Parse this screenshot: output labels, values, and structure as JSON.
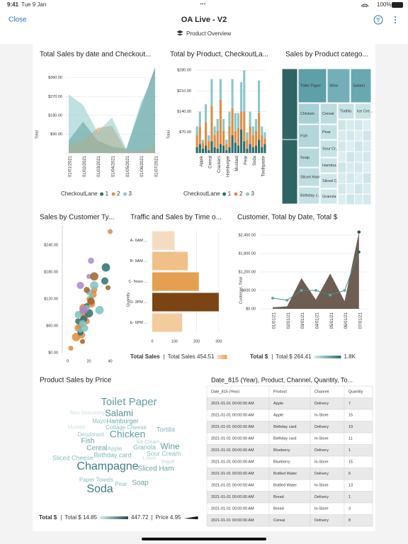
{
  "status_bar": {
    "time": "9:41",
    "date": "Tue 9 Jan",
    "battery": "100%"
  },
  "header": {
    "close": "Close",
    "title": "OA  Live - V2",
    "subtitle": "Product Overview"
  },
  "chart_data": [
    {
      "type": "area",
      "title": "Total Sales by date and  Checkout...",
      "y_label": "Total",
      "x": [
        "01/01/2021",
        "01/02/2021",
        "01/03/2021",
        "01/04/2021",
        "01/05/2021",
        "01/06/2021",
        "01/07/2021"
      ],
      "ylim": [
        0,
        410
      ],
      "yticks": [
        {
          "value": 90,
          "label": "$90.00"
        },
        {
          "value": 180,
          "label": "$180.00"
        },
        {
          "value": 270,
          "label": "$270.00"
        },
        {
          "value": 360,
          "label": "$360.00"
        }
      ],
      "legend_title": "CheckoutLane",
      "series": [
        {
          "name": "1",
          "color": "#2f6e6e",
          "values": [
            60,
            150,
            60,
            30,
            20,
            220,
            410
          ]
        },
        {
          "name": "2",
          "color": "#d9904a",
          "values": [
            40,
            60,
            120,
            130,
            10,
            10,
            40
          ]
        },
        {
          "name": "3",
          "color": "#8cc8c8",
          "values": [
            280,
            230,
            100,
            170,
            20,
            240,
            380
          ]
        }
      ]
    },
    {
      "type": "stacked_bar",
      "title": "Total by Product, CheckoutLa...",
      "y_label": "Total",
      "categories": [
        null,
        "Apple",
        null,
        null,
        "Cereal",
        null,
        null,
        "Crackers",
        null,
        null,
        "Hamburger",
        null,
        null,
        "Mustard",
        null,
        null,
        "Pear",
        null,
        null,
        "Soda",
        null,
        null,
        "Toothpaste",
        null
      ],
      "ylim": [
        0,
        290
      ],
      "yticks": [
        {
          "value": 70,
          "label": "$70.00"
        },
        {
          "value": 140,
          "label": "$140.00"
        },
        {
          "value": 210,
          "label": "$210.00"
        },
        {
          "value": 280,
          "label": "$280.00"
        }
      ],
      "legend_title": "CheckoutLane",
      "series": [
        {
          "name": "1",
          "color": "#2f6e6e",
          "values": [
            20,
            30,
            15,
            25,
            10,
            40,
            20,
            15,
            30,
            25,
            10,
            20,
            60,
            35,
            25,
            80,
            40,
            15,
            30,
            20,
            25,
            45,
            20,
            30
          ]
        },
        {
          "name": "2",
          "color": "#d9904a",
          "values": [
            40,
            60,
            20,
            80,
            30,
            120,
            40,
            60,
            150,
            50,
            20,
            70,
            90,
            40,
            60,
            60,
            100,
            30,
            60,
            40,
            50,
            90,
            40,
            20
          ]
        },
        {
          "name": "3",
          "color": "#8cc8c8",
          "values": [
            30,
            50,
            10,
            60,
            20,
            90,
            30,
            40,
            70,
            40,
            15,
            50,
            100,
            60,
            50,
            100,
            140,
            25,
            50,
            30,
            40,
            110,
            30,
            20
          ]
        }
      ]
    },
    {
      "type": "treemap",
      "title": "Sales by Product catego...",
      "categories": [
        "Toilet Paper",
        "Wine",
        "Salami",
        "Chicken",
        "Cereal",
        "Tortilla",
        "Ice Cre...",
        "Fish",
        "Pear",
        "Soap",
        "Sour Cr...",
        "Hambur...",
        "Sliced Ham",
        "Sliced C...",
        "Birthday c...",
        "Granola"
      ]
    },
    {
      "type": "scatter",
      "title": "Sales by Customer Ty...",
      "xlim": [
        -5,
        47
      ],
      "xticks": [
        0,
        20,
        40
      ],
      "ylim": [
        0,
        284
      ],
      "yticks": [
        {
          "value": 0,
          "label": "$0.00"
        },
        {
          "value": 60,
          "label": "$60.00"
        },
        {
          "value": 120,
          "label": "$120.00"
        },
        {
          "value": 180,
          "label": "$180.00"
        },
        {
          "value": 240,
          "label": "$240.00"
        }
      ],
      "series": [
        {
          "color": "#e08a3c",
          "x": [
            3,
            8,
            10,
            12,
            14,
            15,
            16,
            18,
            20,
            22,
            24,
            25,
            40,
            15,
            13
          ],
          "values": [
            10,
            35,
            55,
            60,
            75,
            90,
            80,
            70,
            120,
            110,
            130,
            140,
            270,
            100,
            40
          ]
        },
        {
          "color": "#2f6e6e",
          "x": [
            36,
            15,
            12,
            18,
            20,
            35,
            10
          ],
          "values": [
            190,
            75,
            45,
            105,
            88,
            160,
            70
          ]
        },
        {
          "color": "#7fc0c0",
          "x": [
            16,
            18,
            22,
            25,
            14,
            20,
            12,
            30,
            10
          ],
          "values": [
            55,
            100,
            125,
            150,
            65,
            135,
            50,
            95,
            85
          ]
        },
        {
          "color": "#a78ac8",
          "x": [
            22,
            20,
            15,
            12
          ],
          "values": [
            205,
            170,
            95,
            150
          ]
        },
        {
          "color": "#a0622a",
          "x": [
            38,
            25,
            22,
            18,
            14
          ],
          "values": [
            145,
            170,
            115,
            140,
            25
          ]
        }
      ]
    },
    {
      "type": "hbar",
      "title": "Traffic and Sales by Time o...",
      "x_label": "Quantity",
      "categories": [
        "A- 6AM ...",
        "B- 9AM ...",
        "C- Noon ...",
        "D- 3PM ...",
        "E- 6PM ..."
      ],
      "values": [
        100,
        160,
        210,
        300,
        135
      ],
      "colors": [
        "#f5dcc0",
        "#f0c088",
        "#e4a050",
        "#7a4414",
        "#f2cc9c"
      ],
      "xlim": [
        0,
        310
      ],
      "xticks": [
        0,
        100,
        200,
        300
      ],
      "grid": true,
      "legend": {
        "title": "Total Sales",
        "min_label": "Total Sales 454.51"
      }
    },
    {
      "type": "area_line",
      "title": "Customer, Total by Date, Total $",
      "y_label": "Customer, Total",
      "x": [
        "01/01/21",
        "02/01/21",
        "03/01/21",
        "04/01/21",
        "05/01/21",
        "06/01/21",
        "07/01/21"
      ],
      "ylim": [
        0,
        2630
      ],
      "yticks": [
        {
          "value": 0,
          "label": "$0.00"
        },
        {
          "value": 600,
          "label": "$600.00"
        },
        {
          "value": 1200,
          "label": "$1,200.00"
        },
        {
          "value": 1800,
          "label": "$1,800.00"
        },
        {
          "value": 2400,
          "label": "$2,400.00"
        }
      ],
      "series": [
        {
          "color": "#6e5d52",
          "values": [
            50,
            80,
            1000,
            300,
            1150,
            250,
            2500
          ]
        },
        {
          "color": "#3e8d8a",
          "values": [
            350,
            280,
            600,
            600,
            450,
            600,
            1850
          ]
        }
      ],
      "legend": {
        "title": "Total $",
        "min_label": "Total $ 264.41",
        "max_label": "1.8K"
      }
    },
    {
      "type": "wordcloud",
      "title": "Product Sales by Price",
      "words": [
        "Toilet Paper",
        "Salami",
        "Taco Seasoning",
        "Mayo",
        "Hamburger",
        "Cottage Cheese",
        "Deodorant",
        "Chicken",
        "Tortilla",
        "Fish",
        "Ice Cream",
        "Granola",
        "Cereal",
        "Apple",
        "Wine",
        "Birthday card",
        "Sour Cream",
        "Sliced Cheese",
        "Yogurt",
        "Champagne",
        "Sliced Ham",
        "Mustard",
        "Lotion",
        "Paper Towels",
        "Pear",
        "Soap",
        "Soda"
      ],
      "legend": {
        "title": "Total $",
        "min_label": "Total $ 14.85",
        "max_label": "447.72",
        "size_label": "Price 4.95"
      }
    }
  ],
  "table": {
    "title": "Date_815 (Year), Product, Channel, Quantity, To...",
    "columns": [
      "Date_815 (Year)",
      "Product",
      "Channel",
      "Quantity"
    ],
    "rows": [
      [
        "2021-01-01 00:00:00 AM",
        "Apple",
        "Delivery",
        7
      ],
      [
        "2021-01-01 00:00:00 AM",
        "Apple",
        "In-Store",
        15
      ],
      [
        "2021-01-01 00:00:00 AM",
        "Birthday card",
        "Delivery",
        19
      ],
      [
        "2021-01-01 00:00:00 AM",
        "Birthday card",
        "In-Store",
        11
      ],
      [
        "2021-01-01 00:00:00 AM",
        "Blueberry",
        "Delivery",
        1
      ],
      [
        "2021-01-01 00:00:00 AM",
        "Blueberry",
        "In-Store",
        15
      ],
      [
        "2021-01-01 00:00:00 AM",
        "Bottled Water",
        "Delivery",
        6
      ],
      [
        "2021-01-01 00:00:00 AM",
        "Bottled Water",
        "In-Store",
        13
      ],
      [
        "2021-01-01 00:00:00 AM",
        "Bread",
        "Delivery",
        1
      ],
      [
        "2021-01-01 00:00:00 AM",
        "Bread",
        "In-Store",
        3
      ],
      [
        "2021-01-01 00:00:00 AM",
        "Cereal",
        "Delivery",
        8
      ]
    ]
  }
}
